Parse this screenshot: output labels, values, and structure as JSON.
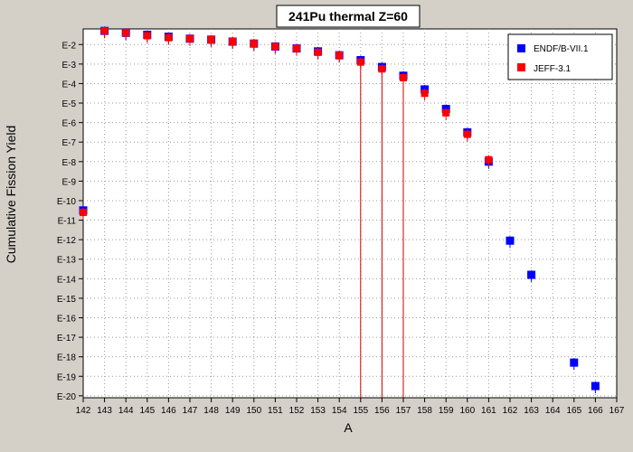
{
  "chart_data": {
    "type": "scatter",
    "title": "241Pu thermal Z=60",
    "xlabel": "A",
    "ylabel": "Cumulative Fission Yield",
    "x_ticks": [
      "142",
      "143",
      "144",
      "145",
      "146",
      "147",
      "148",
      "149",
      "150",
      "151",
      "152",
      "153",
      "154",
      "155",
      "156",
      "157",
      "158",
      "159",
      "160",
      "161",
      "162",
      "163",
      "164",
      "165",
      "166",
      "167"
    ],
    "y_ticks": [
      "E-2",
      "E-3",
      "E-4",
      "E-5",
      "E-6",
      "E-7",
      "E-8",
      "E-9",
      "E-10",
      "E-11",
      "E-12",
      "E-13",
      "E-14",
      "E-15",
      "E-16",
      "E-17",
      "E-18",
      "E-19",
      "E-20"
    ],
    "xlim": [
      142,
      167
    ],
    "ylog_exponent_range": [
      -1.2,
      -20.1
    ],
    "grid": true,
    "legend_position": "top-right",
    "series": [
      {
        "name": "ENDF/B-VII.1",
        "color": "#0000ff",
        "points": [
          {
            "x": 142,
            "y": "1e-10.5"
          },
          {
            "x": 143,
            "y": "1e-1.3"
          },
          {
            "x": 144,
            "y": "1e-1.4"
          },
          {
            "x": 145,
            "y": "1e-1.5"
          },
          {
            "x": 146,
            "y": "1e-1.6"
          },
          {
            "x": 147,
            "y": "1e-1.7"
          },
          {
            "x": 148,
            "y": "1e-1.75"
          },
          {
            "x": 149,
            "y": "1e-1.85"
          },
          {
            "x": 150,
            "y": "1e-1.95"
          },
          {
            "x": 151,
            "y": "1e-2.1"
          },
          {
            "x": 152,
            "y": "1e-2.2"
          },
          {
            "x": 153,
            "y": "1e-2.35"
          },
          {
            "x": 154,
            "y": "1e-2.55"
          },
          {
            "x": 155,
            "y": "1e-2.8"
          },
          {
            "x": 156,
            "y": "1e-3.15"
          },
          {
            "x": 157,
            "y": "1e-3.6"
          },
          {
            "x": 158,
            "y": "1e-4.3"
          },
          {
            "x": 159,
            "y": "1e-5.3"
          },
          {
            "x": 160,
            "y": "1e-6.5"
          },
          {
            "x": 161,
            "y": "1e-8.0"
          },
          {
            "x": 162,
            "y": "1e-12.05"
          },
          {
            "x": 163,
            "y": "1e-13.8"
          },
          {
            "x": 165,
            "y": "1e-18.3"
          },
          {
            "x": 166,
            "y": "1e-19.5"
          }
        ]
      },
      {
        "name": "JEFF-3.1",
        "color": "#ff0000",
        "points": [
          {
            "x": 142,
            "y": "1e-10.6"
          },
          {
            "x": 143,
            "y": "1e-1.3"
          },
          {
            "x": 144,
            "y": "1e-1.4"
          },
          {
            "x": 145,
            "y": "1e-1.55"
          },
          {
            "x": 146,
            "y": "1e-1.65"
          },
          {
            "x": 147,
            "y": "1e-1.7"
          },
          {
            "x": 148,
            "y": "1e-1.75"
          },
          {
            "x": 149,
            "y": "1e-1.85"
          },
          {
            "x": 150,
            "y": "1e-1.95"
          },
          {
            "x": 151,
            "y": "1e-2.1"
          },
          {
            "x": 152,
            "y": "1e-2.2"
          },
          {
            "x": 153,
            "y": "1e-2.4"
          },
          {
            "x": 154,
            "y": "1e-2.55"
          },
          {
            "x": 155,
            "y": "1e-2.9"
          },
          {
            "x": 156,
            "y": "1e-3.25"
          },
          {
            "x": 157,
            "y": "1e-3.7"
          },
          {
            "x": 158,
            "y": "1e-4.5"
          },
          {
            "x": 159,
            "y": "1e-5.5"
          },
          {
            "x": 160,
            "y": "1e-6.6"
          },
          {
            "x": 161,
            "y": "1e-7.9"
          }
        ]
      }
    ],
    "drop_lines_at_x": [
      155,
      156,
      157
    ],
    "drop_line_color": "#cc0000"
  }
}
